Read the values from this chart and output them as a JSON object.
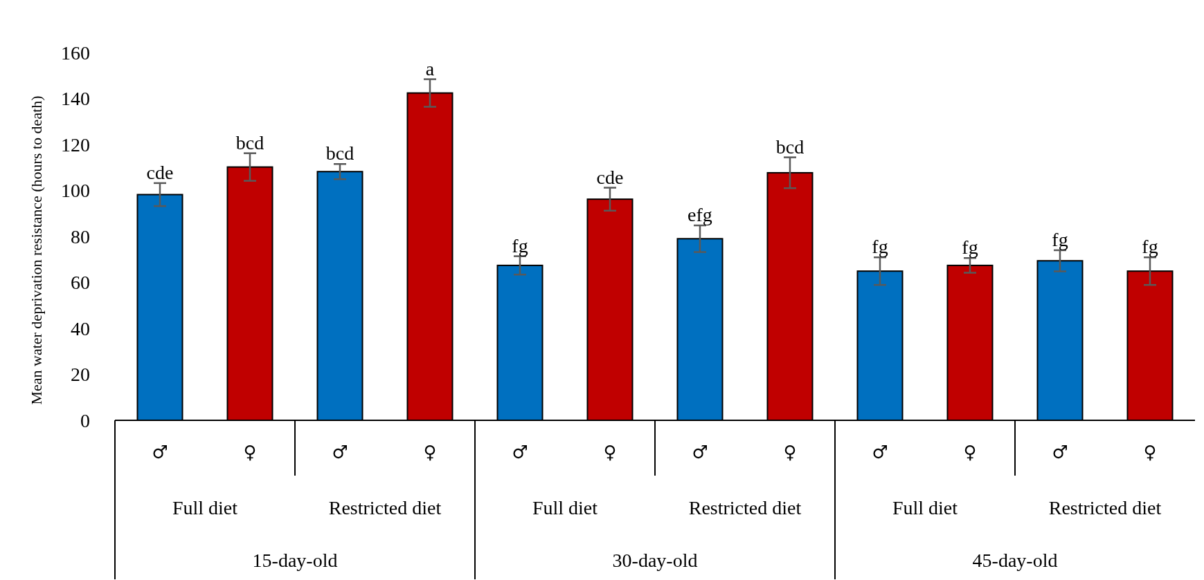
{
  "chart_data": {
    "type": "bar",
    "ylabel": "Mean water deprivation resistance (hours to death)",
    "categories": [
      "♂",
      "♀",
      "♂",
      "♀",
      "♂",
      "♀",
      "♂",
      "♀",
      "♂",
      "♀",
      "♂",
      "♀"
    ],
    "values": [
      98.2,
      110.2,
      108.2,
      142.4,
      67.4,
      96.2,
      79,
      107.7,
      64.9,
      67.4,
      69.4,
      64.9
    ],
    "colors": [
      "#0070c0",
      "#c00000",
      "#0070c0",
      "#c00000",
      "#0070c0",
      "#c00000",
      "#0070c0",
      "#c00000",
      "#0070c0",
      "#c00000",
      "#0070c0",
      "#c00000"
    ],
    "errors": [
      5,
      6,
      3.3,
      6,
      4,
      5,
      5.8,
      6.7,
      6,
      3.2,
      4.6,
      6
    ],
    "value_labels": [
      "cde",
      "bcd",
      "bcd",
      "a",
      "fg",
      "cde",
      "efg",
      "bcd",
      "fg",
      "fg",
      "fg",
      "fg"
    ],
    "annotations": [
      "Full diet",
      "Restricted diet",
      "Full diet",
      "Restricted diet",
      "Full diet",
      "Restricted diet",
      "15-day-old",
      "30-day-old",
      "45-day-old"
    ],
    "ylim": [
      0,
      160
    ],
    "yticks": [
      0,
      20,
      40,
      60,
      80,
      100,
      120,
      140,
      160
    ],
    "grid": false
  }
}
